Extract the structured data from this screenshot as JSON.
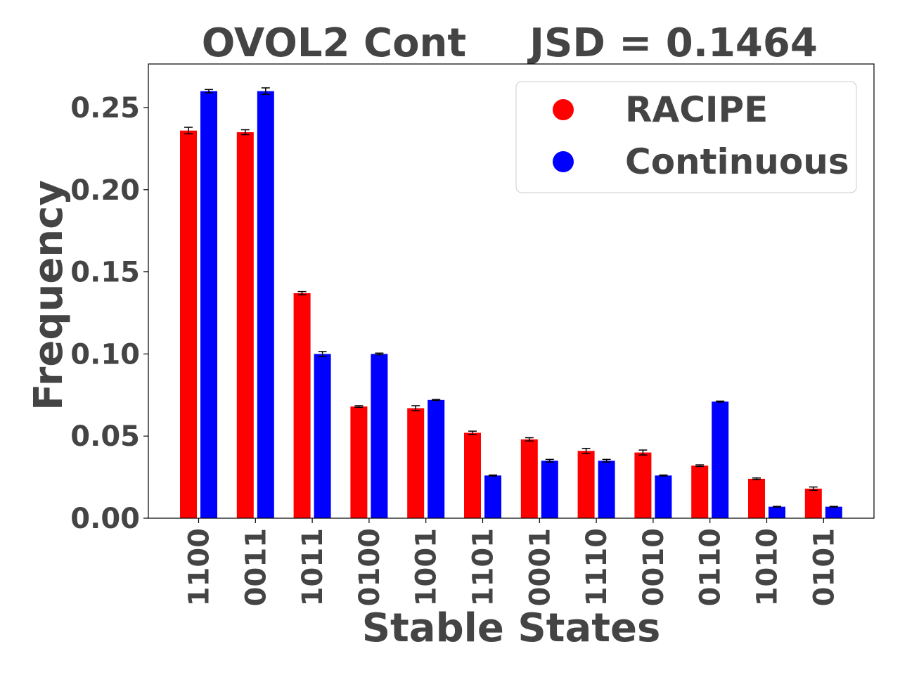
{
  "chart_data": {
    "type": "bar",
    "title": "OVOL2 Cont",
    "title_right": "JSD = 0.1464",
    "xlabel": "Stable States",
    "ylabel": "Frequency",
    "ylim": [
      0,
      0.27
    ],
    "yticks": [
      "0.00",
      "0.05",
      "0.10",
      "0.15",
      "0.20",
      "0.25"
    ],
    "ytick_values": [
      0,
      0.05,
      0.1,
      0.15,
      0.2,
      0.25
    ],
    "grid": false,
    "legend_position": "top-right",
    "categories": [
      "1100",
      "0011",
      "1011",
      "0100",
      "1001",
      "1101",
      "0001",
      "1110",
      "0010",
      "0110",
      "1010",
      "0101"
    ],
    "series": [
      {
        "name": "RACIPE",
        "color": "#ff0000",
        "values": [
          0.236,
          0.235,
          0.137,
          0.068,
          0.067,
          0.052,
          0.048,
          0.041,
          0.04,
          0.032,
          0.024,
          0.018
        ],
        "errors": [
          0.002,
          0.0015,
          0.001,
          0.0005,
          0.0015,
          0.001,
          0.001,
          0.0015,
          0.0015,
          0.0005,
          0.0005,
          0.001
        ]
      },
      {
        "name": "Continuous",
        "color": "#0000ff",
        "values": [
          0.26,
          0.26,
          0.1,
          0.1,
          0.072,
          0.026,
          0.035,
          0.035,
          0.026,
          0.071,
          0.007,
          0.007
        ],
        "errors": [
          0.001,
          0.002,
          0.0015,
          0.0005,
          0.0003,
          0.0003,
          0.0008,
          0.0008,
          0.0003,
          0.0003,
          0.0002,
          0.0002
        ]
      }
    ]
  }
}
